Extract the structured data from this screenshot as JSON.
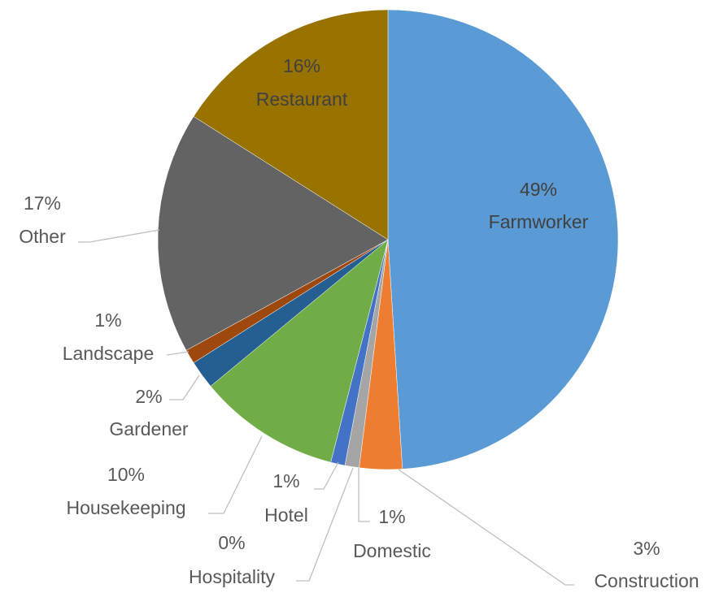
{
  "chart_data": {
    "type": "pie",
    "categories": [
      "Farmworker",
      "Construction",
      "Domestic",
      "Hospitality",
      "Hotel",
      "Housekeeping",
      "Gardener",
      "Landscape",
      "Other",
      "Restaurant"
    ],
    "values": [
      49,
      3,
      1,
      0,
      1,
      10,
      2,
      1,
      17,
      16
    ],
    "value_labels": [
      "49%",
      "3%",
      "1%",
      "0%",
      "1%",
      "10%",
      "2%",
      "1%",
      "17%",
      "16%"
    ],
    "colors": [
      "#5b9bd5",
      "#ed7d31",
      "#a5a5a5",
      "#ffc000",
      "#4472c4",
      "#70ad47",
      "#255e91",
      "#9e480e",
      "#636363",
      "#997300"
    ]
  }
}
